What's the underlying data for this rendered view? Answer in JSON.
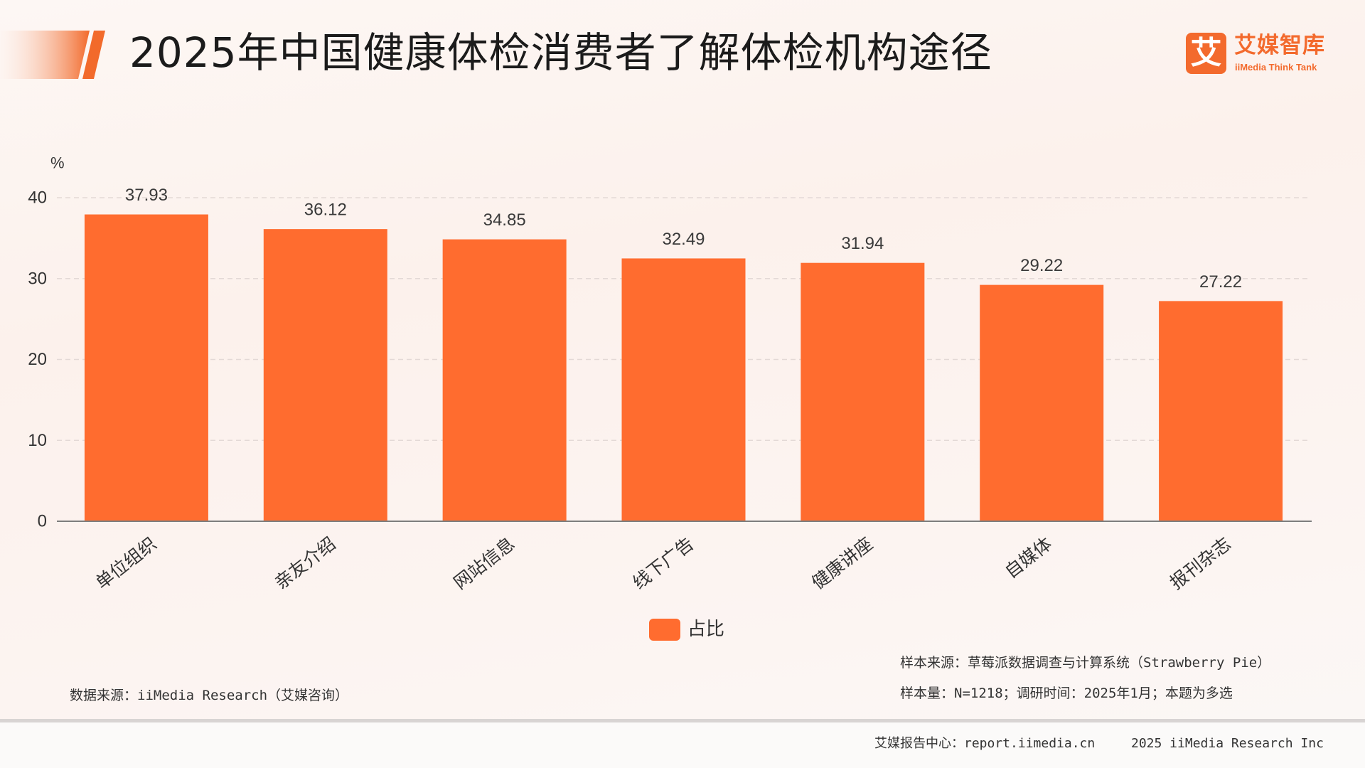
{
  "logo": {
    "icon_char": "艾",
    "name": "艾媒智库",
    "subtitle": "iiMedia Think Tank"
  },
  "chart_data": {
    "type": "bar",
    "title": "2025年中国健康体检消费者了解体检机构途径",
    "categories": [
      "单位组织",
      "亲友介绍",
      "网站信息",
      "线下广告",
      "健康讲座",
      "自媒体",
      "报刊杂志"
    ],
    "series": [
      {
        "name": "占比",
        "values": [
          37.93,
          36.12,
          34.85,
          32.49,
          31.94,
          29.22,
          27.22
        ],
        "color": "#ff6c2f"
      }
    ],
    "ylabel": "%",
    "ylim": [
      0,
      40
    ],
    "yticks": [
      0,
      10,
      20,
      30,
      40
    ],
    "grid": true,
    "legend": "bottom-center"
  },
  "notes": {
    "sample_source": "样本来源：草莓派数据调查与计算系统（Strawberry Pie）",
    "sample_size": "样本量：N=1218；调研时间：2025年1月；本题为多选",
    "data_source": "数据来源：iiMedia Research（艾媒咨询）"
  },
  "footer": {
    "report_center": "艾媒报告中心：report.iimedia.cn",
    "copyright": "2025 iiMedia Research Inc"
  },
  "colors": {
    "accent": "#ff6c2f",
    "brand": "#f36a2d",
    "background": "#fcf5f2"
  }
}
